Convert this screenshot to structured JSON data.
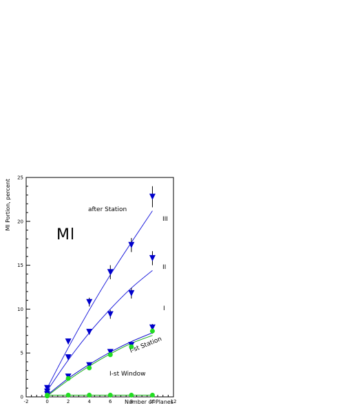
{
  "chart_data": {
    "type": "scatter",
    "title": "",
    "xlabel": "Number of Planes",
    "ylabel": "Ml Portion, percent",
    "xlim": [
      -2,
      12
    ],
    "ylim": [
      0,
      25
    ],
    "xticks": [
      -2,
      0,
      2,
      4,
      6,
      8,
      10,
      12
    ],
    "yticks": [
      0,
      5,
      10,
      15,
      20,
      25
    ],
    "grid": false,
    "annotations": [
      "Ml",
      "after Station",
      "III",
      "II",
      "I",
      "I-st Station",
      "I-st Window"
    ],
    "series": [
      {
        "name": "III",
        "marker": "triangle-down",
        "color": "#0000cc",
        "fit_color": "#2222dd",
        "x": [
          0,
          2,
          4,
          6,
          8,
          10
        ],
        "y": [
          1.0,
          6.3,
          10.8,
          14.2,
          17.3,
          22.8
        ],
        "err": [
          0.3,
          0.3,
          0.5,
          0.8,
          0.8,
          1.2
        ],
        "fit": [
          1.0,
          5.6,
          9.9,
          13.9,
          17.6,
          21.2
        ]
      },
      {
        "name": "II",
        "marker": "triangle-down",
        "color": "#0000cc",
        "fit_color": "#2222dd",
        "x": [
          0,
          2,
          4,
          6,
          8,
          10
        ],
        "y": [
          0.6,
          4.5,
          7.4,
          9.4,
          11.8,
          15.8
        ],
        "err": [
          0.2,
          0.3,
          0.3,
          0.5,
          0.6,
          0.8
        ],
        "fit": [
          0.7,
          4.2,
          7.3,
          10.0,
          12.4,
          14.4
        ]
      },
      {
        "name": "I",
        "marker": "triangle-down",
        "color": "#0000cc",
        "fit_color": "#1111cc",
        "x": [
          0,
          2,
          4,
          6,
          8,
          10
        ],
        "y": [
          0.3,
          2.3,
          3.6,
          5.1,
          5.9,
          7.9
        ],
        "err": [
          0.15,
          0.2,
          0.2,
          0.25,
          0.3,
          0.4
        ],
        "fit": [
          0.2,
          2.1,
          3.7,
          5.1,
          6.3,
          7.3
        ]
      },
      {
        "name": "I-st Station",
        "marker": "circle",
        "color": "#22dd22",
        "fit_color": "#11aa11",
        "x": [
          0,
          2,
          4,
          6,
          8,
          10
        ],
        "y": [
          0.1,
          2.1,
          3.3,
          4.8,
          5.7,
          7.5
        ],
        "err": [
          0.1,
          0.15,
          0.15,
          0.2,
          0.25,
          0.3
        ],
        "fit": [
          0.1,
          1.9,
          3.5,
          4.9,
          6.1,
          7.0
        ]
      },
      {
        "name": "I-st Window",
        "marker": "circle",
        "color": "#22dd22",
        "fit_color": "#11aa11",
        "x": [
          0,
          2,
          4,
          6,
          8,
          10
        ],
        "y": [
          0.2,
          0.2,
          0.2,
          0.2,
          0.2,
          0.2
        ],
        "err": [
          0.05,
          0.05,
          0.05,
          0.05,
          0.05,
          0.05
        ],
        "fit": [
          0.2,
          0.2,
          0.2,
          0.2,
          0.2,
          0.2
        ]
      }
    ]
  }
}
